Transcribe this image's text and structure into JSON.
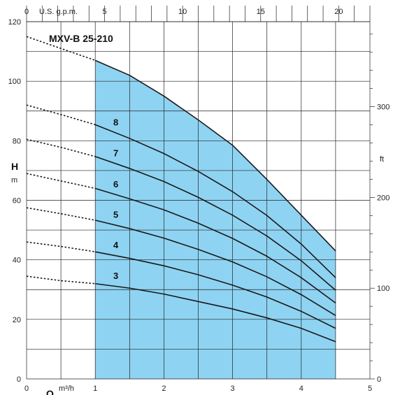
{
  "chart_data": {
    "type": "line",
    "title": "MXV-B 25-210",
    "xlabel": "Q",
    "x_unit": "m³/h",
    "ylabel": "H",
    "y_unit": "m",
    "top_axis_label": "U.S. g.p.m.",
    "right_axis_unit": "ft",
    "xlim": [
      0,
      5
    ],
    "ylim": [
      0,
      120
    ],
    "top_axis_lim": [
      0,
      22
    ],
    "right_axis_lim": [
      0,
      393.7
    ],
    "x_ticks": [
      "0",
      "1",
      "2",
      "3",
      "4",
      "5"
    ],
    "y_ticks": [
      "0",
      "20",
      "40",
      "60",
      "80",
      "100",
      "120"
    ],
    "top_ticks": [
      "0",
      "5",
      "10",
      "15",
      "20"
    ],
    "right_ticks": [
      "0",
      "100",
      "200",
      "300"
    ],
    "operating_range": [
      1,
      4.5
    ],
    "grid": true,
    "series": [
      {
        "name": "3",
        "x": [
          0,
          0.5,
          1,
          1.5,
          2,
          2.5,
          3,
          3.5,
          4,
          4.5
        ],
        "y": [
          34.5,
          33,
          32,
          30.5,
          28.5,
          26,
          23.5,
          20.5,
          17,
          12.5
        ]
      },
      {
        "name": "4",
        "x": [
          0,
          0.5,
          1,
          1.5,
          2,
          2.5,
          3,
          3.5,
          4,
          4.5
        ],
        "y": [
          46,
          44.5,
          42.7,
          40.5,
          38,
          35,
          31.5,
          27.5,
          22.7,
          17
        ]
      },
      {
        "name": "5",
        "x": [
          0,
          0.5,
          1,
          1.5,
          2,
          2.5,
          3,
          3.5,
          4,
          4.5
        ],
        "y": [
          57.5,
          55.5,
          53.3,
          50.5,
          47.3,
          43.5,
          39.3,
          34.3,
          28.3,
          21.3
        ]
      },
      {
        "name": "6",
        "x": [
          0,
          0.5,
          1,
          1.5,
          2,
          2.5,
          3,
          3.5,
          4,
          4.5
        ],
        "y": [
          69,
          66.5,
          64,
          60.5,
          56.8,
          52.3,
          47.2,
          41.2,
          34,
          25.5
        ]
      },
      {
        "name": "7",
        "x": [
          0,
          0.5,
          1,
          1.5,
          2,
          2.5,
          3,
          3.5,
          4,
          4.5
        ],
        "y": [
          80.5,
          77.8,
          74.7,
          70.7,
          66.3,
          61,
          55,
          48,
          39.7,
          29.8
        ]
      },
      {
        "name": "8",
        "x": [
          0,
          0.5,
          1,
          1.5,
          2,
          2.5,
          3,
          3.5,
          4,
          4.5
        ],
        "y": [
          92,
          88.8,
          85.4,
          80.8,
          75.7,
          69.7,
          62.9,
          54.9,
          45.3,
          34
        ]
      }
    ],
    "envelope": {
      "x": [
        0,
        0.5,
        1,
        1.5,
        2,
        2.5,
        3,
        3.5,
        4,
        4.5
      ],
      "y": [
        115,
        111,
        107,
        102,
        95,
        87,
        78.5,
        67,
        55,
        43
      ]
    },
    "colors": {
      "fill": "#8fd3f2",
      "line": "#1a1a1a",
      "grid": "#222222"
    }
  }
}
